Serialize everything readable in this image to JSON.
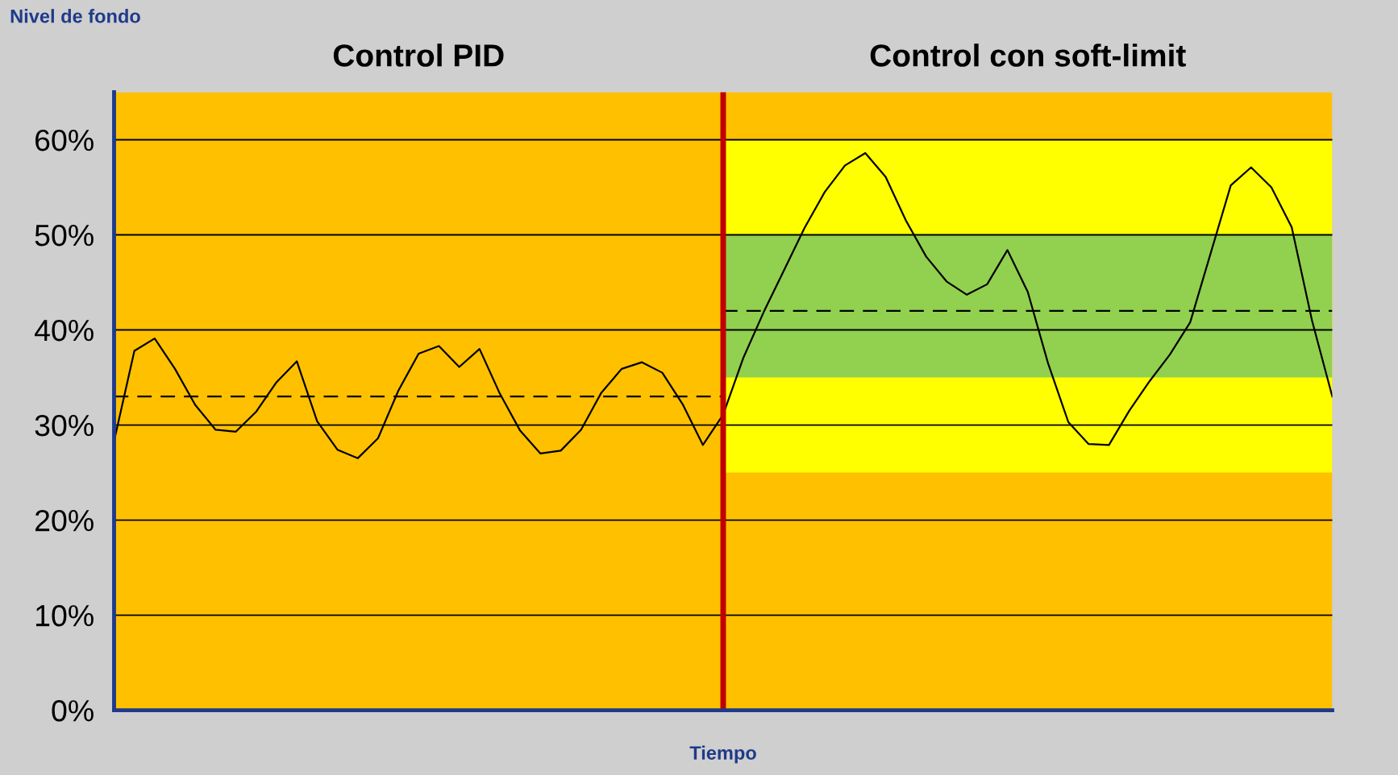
{
  "chart_data": {
    "type": "line",
    "xlabel": "Tiempo",
    "ylabel": "Nivel de fondo",
    "annotations": [
      "Control PID",
      "Control con soft-limit"
    ],
    "categories": [
      null,
      null,
      null,
      null,
      null,
      null,
      null,
      null,
      null,
      null,
      null,
      null,
      null,
      null,
      null,
      null,
      null,
      null,
      null,
      null,
      null,
      null,
      null,
      null,
      null,
      null,
      null,
      null,
      null,
      null,
      null,
      null,
      null,
      null,
      null,
      null,
      null,
      null,
      null,
      null,
      null,
      null,
      null,
      null,
      null,
      null,
      null,
      null,
      null,
      null,
      null,
      null,
      null,
      null,
      null,
      null,
      null,
      null,
      null,
      null,
      null
    ],
    "ylim": [
      0,
      65
    ],
    "yticks": [
      {
        "value": 0,
        "label": "0%"
      },
      {
        "value": 10,
        "label": "10%"
      },
      {
        "value": 20,
        "label": "20%"
      },
      {
        "value": 30,
        "label": "30%"
      },
      {
        "value": 40,
        "label": "40%"
      },
      {
        "value": 50,
        "label": "50%"
      },
      {
        "value": 60,
        "label": "60%"
      }
    ],
    "tick_labels": "y",
    "grid": "y",
    "ref_lines": [
      {
        "axis": "x",
        "color": "#c00000"
      }
    ],
    "bands": [
      {
        "axis": "y",
        "from": 0,
        "to": 65,
        "color": "#ffc000"
      },
      {
        "axis": "y",
        "from": 25,
        "to": 60,
        "color": "#ffff00"
      },
      {
        "axis": "y",
        "from": 35,
        "to": 50,
        "color": "#92d050"
      }
    ],
    "series": [
      {
        "color": "#000000",
        "line_style": "solid",
        "values": [
          28.3,
          37.8,
          39.1,
          35.9,
          32.1,
          29.5,
          29.3,
          31.4,
          34.5,
          36.7,
          30.4,
          27.4,
          26.5,
          28.6,
          33.6,
          37.5,
          38.3,
          36.1,
          38.0,
          33.3,
          29.4,
          27.0,
          27.3,
          29.5,
          33.4,
          35.9,
          36.6,
          35.5,
          32.2,
          27.9,
          31.1,
          37.1,
          41.9,
          46.3,
          50.7,
          54.5,
          57.3,
          58.6,
          56.1,
          51.5,
          47.7,
          45.1,
          43.7,
          44.8,
          48.4,
          44.0,
          36.5,
          30.3,
          28.0,
          27.9,
          31.5,
          34.6,
          37.4,
          40.8,
          48.0,
          55.2,
          57.1,
          55.0,
          50.8,
          41.0,
          33.0
        ]
      },
      {
        "color": "#000000",
        "line_style": "dashed",
        "values": [
          33,
          33,
          33,
          33,
          33,
          33,
          33,
          33,
          33,
          33,
          33,
          33,
          33,
          33,
          33,
          33,
          33,
          33,
          33,
          33,
          33,
          33,
          33,
          33,
          33,
          33,
          33,
          33,
          33,
          33,
          33,
          null,
          null,
          null,
          null,
          null,
          null,
          null,
          null,
          null,
          null,
          null,
          null,
          null,
          null,
          null,
          null,
          null,
          null,
          null,
          null,
          null,
          null,
          null,
          null,
          null,
          null,
          null,
          null,
          null,
          null
        ]
      },
      {
        "color": "#000000",
        "line_style": "dashed",
        "values": [
          null,
          null,
          null,
          null,
          null,
          null,
          null,
          null,
          null,
          null,
          null,
          null,
          null,
          null,
          null,
          null,
          null,
          null,
          null,
          null,
          null,
          null,
          null,
          null,
          null,
          null,
          null,
          null,
          null,
          null,
          42,
          42,
          42,
          42,
          42,
          42,
          42,
          42,
          42,
          42,
          42,
          42,
          42,
          42,
          42,
          42,
          42,
          42,
          42,
          42,
          42,
          42,
          42,
          42,
          42,
          42,
          42,
          42,
          42,
          42,
          42
        ]
      }
    ]
  }
}
